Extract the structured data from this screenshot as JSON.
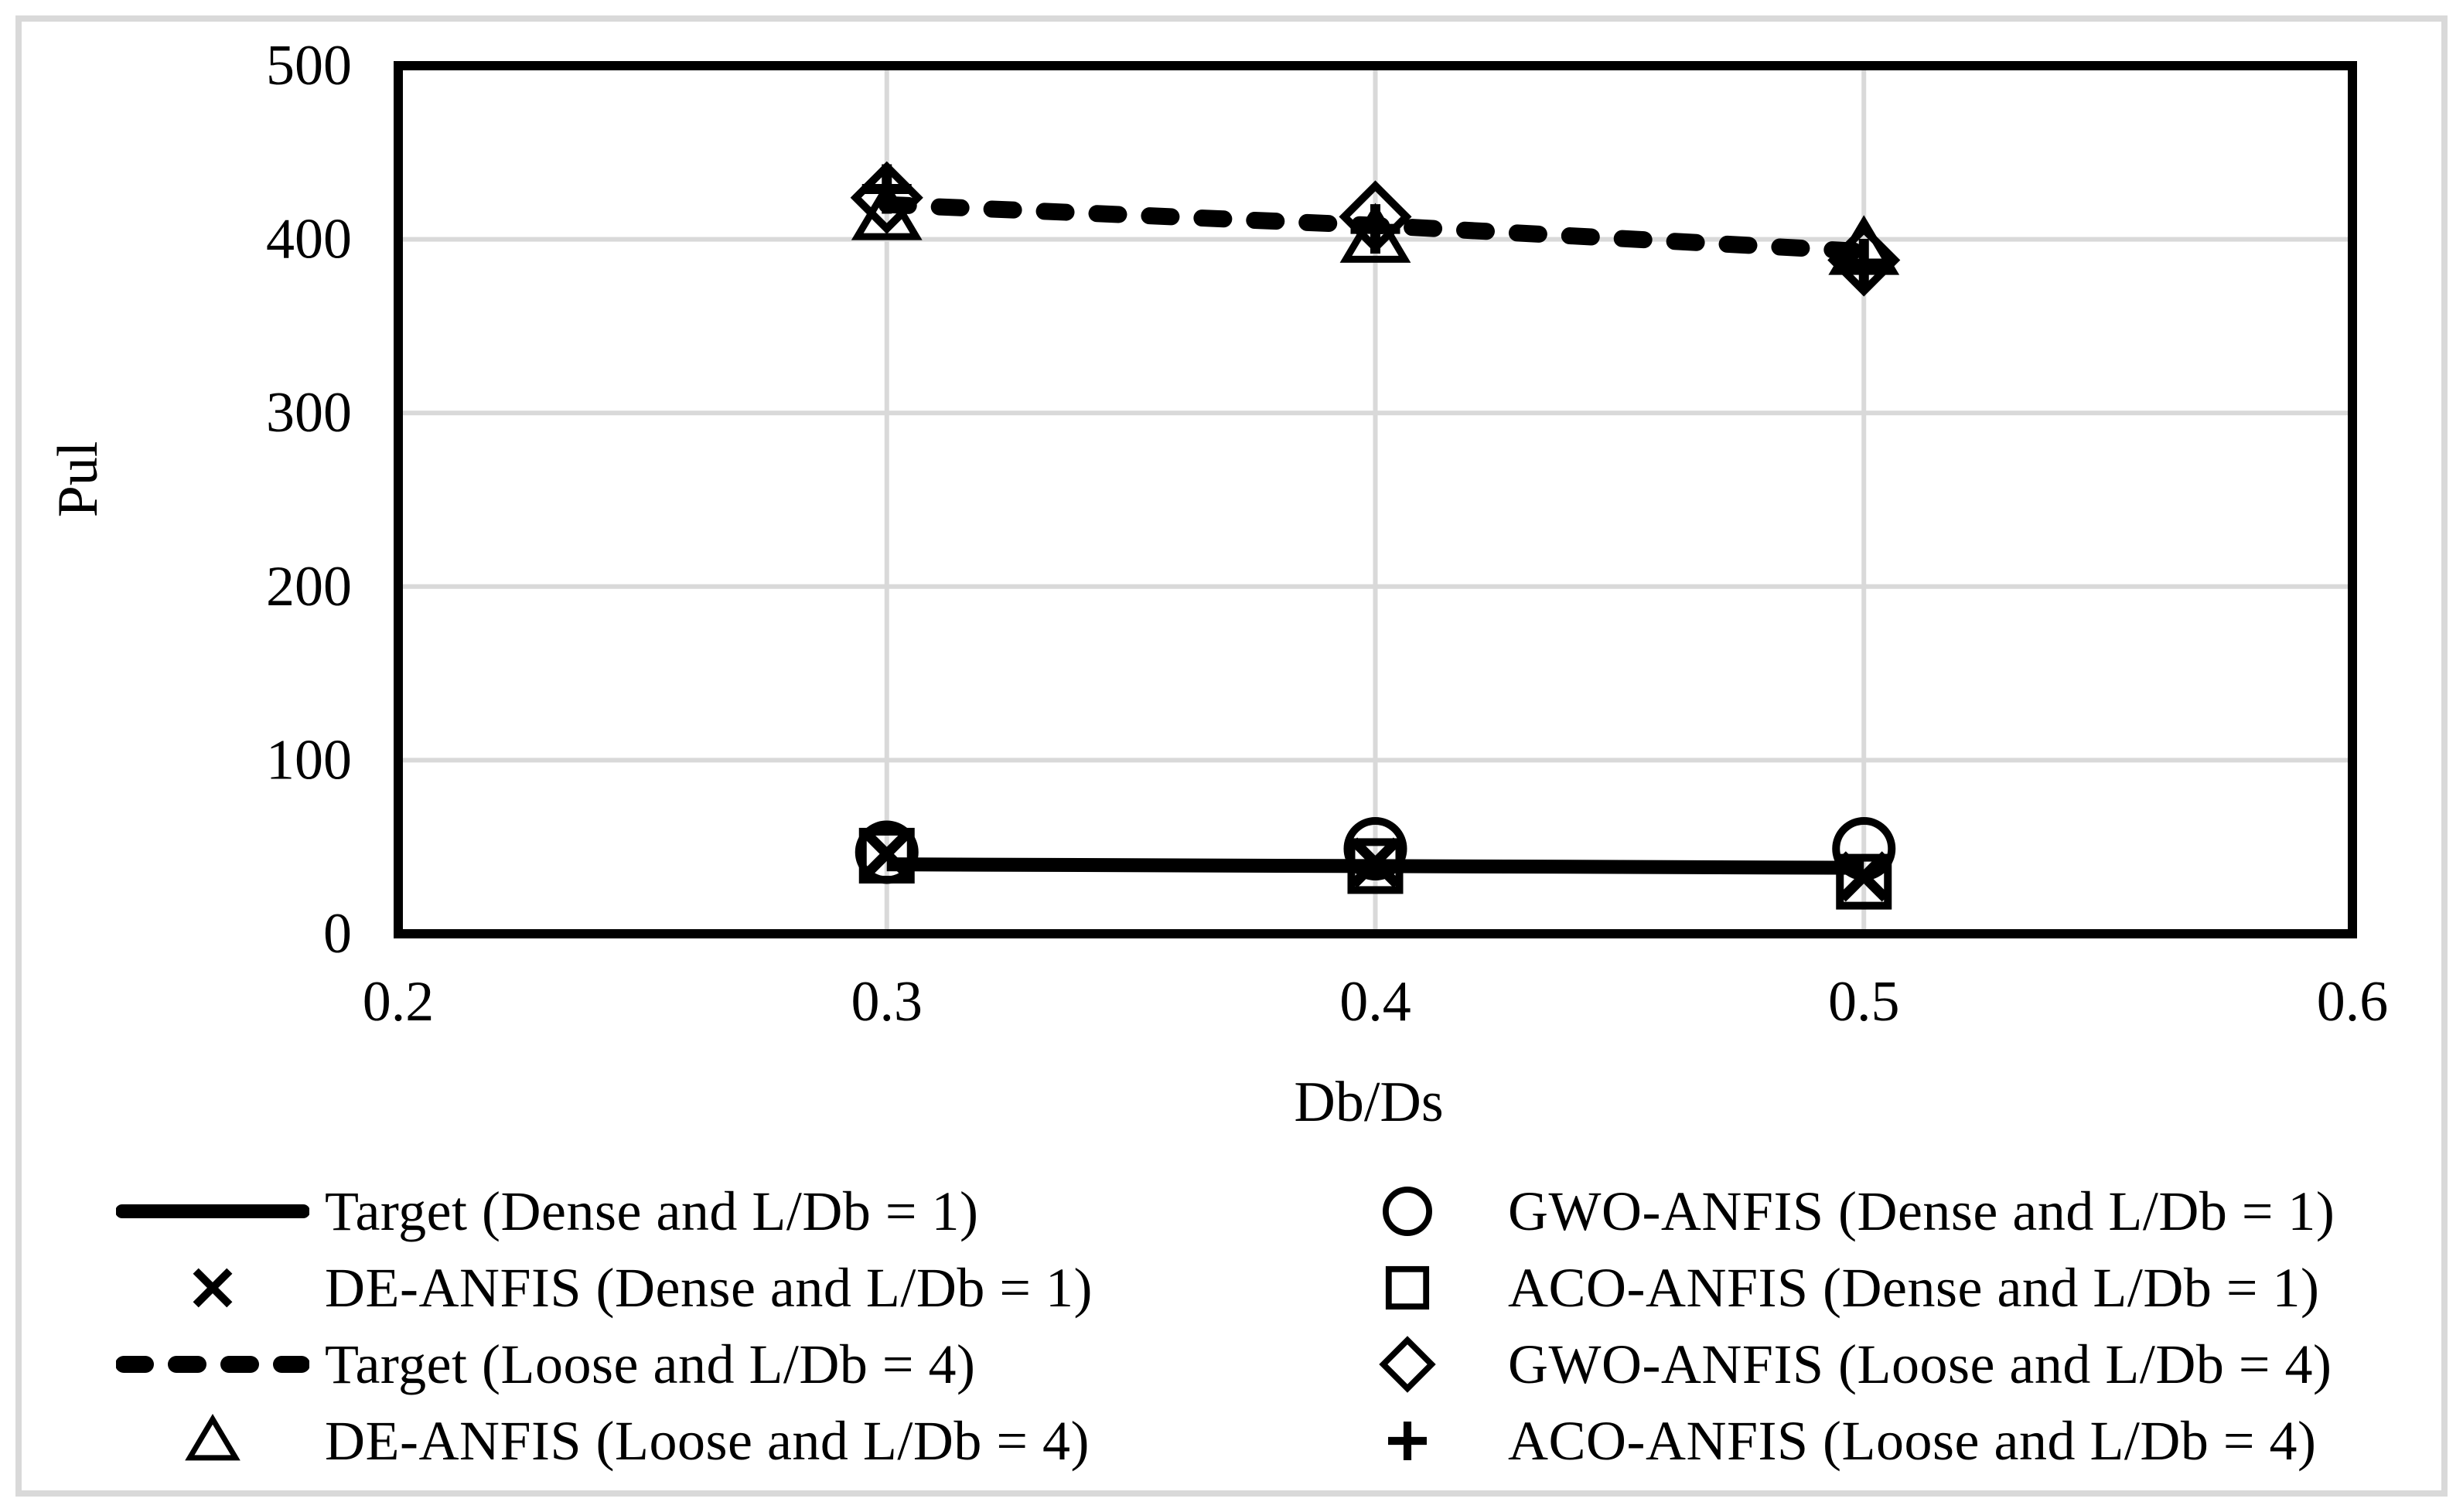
{
  "figure": {
    "background_color": "#ffffff",
    "frame_color": "#d9d9d9"
  },
  "chart_data": {
    "type": "line",
    "title": "",
    "xlabel": "Db/Ds",
    "ylabel": "Pul",
    "xlim": [
      0.2,
      0.6
    ],
    "ylim": [
      0,
      500
    ],
    "x_ticks": [
      0.2,
      0.3,
      0.4,
      0.5,
      0.6
    ],
    "x_tick_labels": [
      "0.2",
      "0.3",
      "0.4",
      "0.5",
      "0.6"
    ],
    "y_ticks": [
      0,
      100,
      200,
      300,
      400,
      500
    ],
    "y_tick_labels": [
      "0",
      "100",
      "200",
      "300",
      "400",
      "500"
    ],
    "grid": true,
    "legend_position": "bottom",
    "x": [
      0.3,
      0.4,
      0.5
    ],
    "series": [
      {
        "name": "Target (Dense and L/Db = 1)",
        "style": "solid-line",
        "marker": "none",
        "values": [
          40,
          39,
          38
        ]
      },
      {
        "name": "DE-ANFIS (Dense and L/Db = 1)",
        "style": "marker",
        "marker": "x",
        "values": [
          46,
          41,
          33
        ]
      },
      {
        "name": "Target (Loose and L/Db = 4)",
        "style": "dashed-line",
        "marker": "none",
        "values": [
          420,
          408,
          393
        ]
      },
      {
        "name": "DE-ANFIS (Loose and L/Db = 4)",
        "style": "marker",
        "marker": "triangle",
        "values": [
          414,
          401,
          394
        ]
      },
      {
        "name": "GWO-ANFIS (Dense and L/Db = 1)",
        "style": "marker",
        "marker": "circle",
        "values": [
          47,
          49,
          49
        ]
      },
      {
        "name": "ACO-ANFIS (Dense and L/Db = 1)",
        "style": "marker",
        "marker": "square",
        "values": [
          45,
          39,
          30
        ]
      },
      {
        "name": "GWO-ANFIS (Loose and L/Db = 4)",
        "style": "marker",
        "marker": "diamond",
        "values": [
          424,
          413,
          388
        ]
      },
      {
        "name": "ACO-ANFIS (Loose and L/Db = 4)",
        "style": "marker",
        "marker": "plus",
        "values": [
          429,
          406,
          386
        ]
      }
    ],
    "colors": {
      "series": "#000000",
      "grid": "#d9d9d9",
      "text": "#000000"
    }
  },
  "legend": {
    "items": [
      {
        "label": "Target (Dense and L/Db = 1)",
        "swatch": "solid-line"
      },
      {
        "label": "DE-ANFIS (Dense and L/Db = 1)",
        "swatch": "x"
      },
      {
        "label": "Target (Loose and L/Db = 4)",
        "swatch": "dashed-line"
      },
      {
        "label": "DE-ANFIS (Loose and L/Db = 4)",
        "swatch": "triangle"
      },
      {
        "label": "GWO-ANFIS (Dense and L/Db = 1)",
        "swatch": "circle"
      },
      {
        "label": "ACO-ANFIS (Dense and L/Db = 1)",
        "swatch": "square"
      },
      {
        "label": "GWO-ANFIS (Loose and L/Db = 4)",
        "swatch": "diamond"
      },
      {
        "label": "ACO-ANFIS (Loose and L/Db = 4)",
        "swatch": "plus"
      }
    ]
  }
}
